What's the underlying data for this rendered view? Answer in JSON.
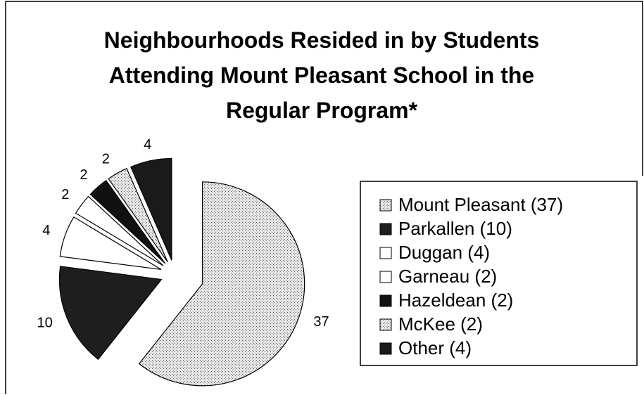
{
  "chart_data": {
    "type": "pie",
    "title": "Neighbourhoods Resided in by Students Attending Mount Pleasant School in the Regular Program*",
    "categories": [
      "Mount Pleasant (37)",
      "Parkallen (10)",
      "Duggan (4)",
      "Garneau (2)",
      "Hazeldean (2)",
      "McKee (2)",
      "Other (4)"
    ],
    "values": [
      37,
      10,
      4,
      2,
      2,
      2,
      4
    ],
    "colors": [
      "#cfcfcf",
      "#1e1e1e",
      "#ffffff",
      "#ffffff",
      "#111111",
      "#cfcfcf",
      "#1a1a1a"
    ],
    "legend": "right"
  }
}
